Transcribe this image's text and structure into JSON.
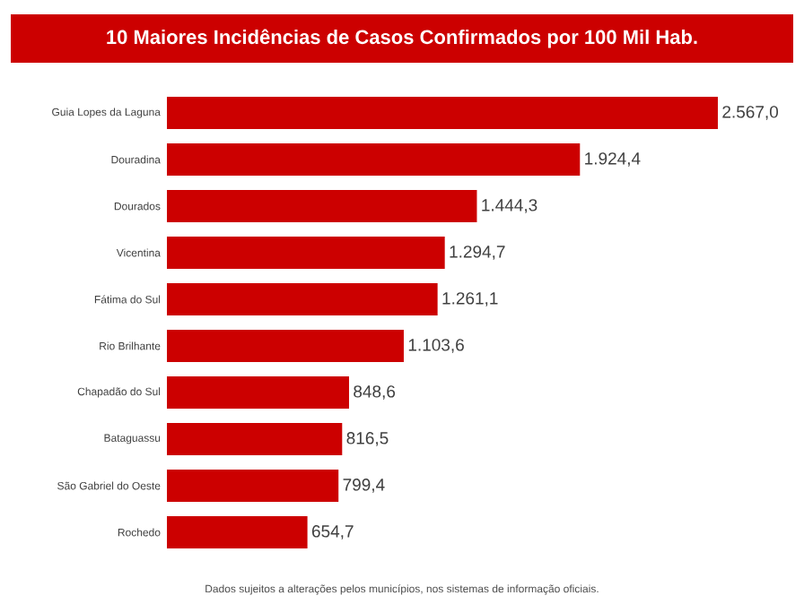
{
  "chart_data": {
    "type": "bar",
    "orientation": "horizontal",
    "title": "10 Maiores Incidências de Casos Confirmados por 100 Mil Hab.",
    "categories": [
      "Guia Lopes da Laguna",
      "Douradina",
      "Dourados",
      "Vicentina",
      "Fátima do Sul",
      "Rio Brilhante",
      "Chapadão do Sul",
      "Bataguassu",
      "São Gabriel do Oeste",
      "Rochedo"
    ],
    "values": [
      2567.0,
      1924.4,
      1444.3,
      1294.7,
      1261.1,
      1103.6,
      848.6,
      816.5,
      799.4,
      654.7
    ],
    "value_labels": [
      "2.567,0",
      "1.924,4",
      "1.444,3",
      "1.294,7",
      "1.261,1",
      "1.103,6",
      "848,6",
      "816,5",
      "799,4",
      "654,7"
    ],
    "color": "#cc0000",
    "annotations": [
      "Dados sujeitos a alterações pelos municípios, nos sistemas de informação oficiais."
    ]
  }
}
